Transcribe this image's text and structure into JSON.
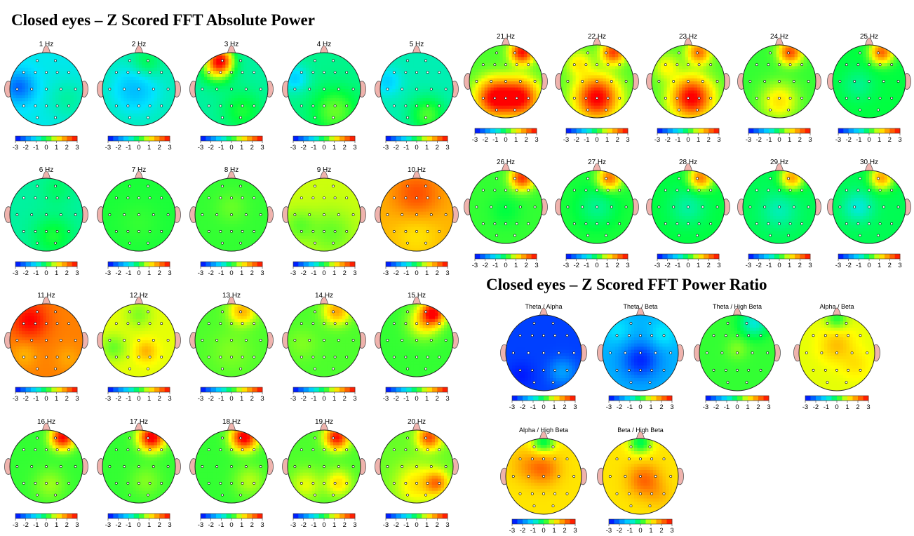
{
  "titles": {
    "absolute": "Closed eyes – Z Scored FFT Absolute Power",
    "ratio": "Closed eyes – Z Scored FFT Power Ratio"
  },
  "colorbar": {
    "ticks": [
      "-3",
      "-2",
      "-1",
      "0",
      "1",
      "2",
      "3"
    ],
    "colors": [
      "#0000ff",
      "#0080ff",
      "#00e5ff",
      "#00ff40",
      "#ffff00",
      "#ff8000",
      "#ff0000"
    ]
  },
  "absolute_maps": [
    {
      "label": "1 Hz",
      "base": -0.9,
      "blobs": [
        [
          -0.75,
          -0.05,
          -1.3,
          0.3
        ],
        [
          0.6,
          0.3,
          0.4,
          0.4
        ]
      ]
    },
    {
      "label": "2 Hz",
      "base": -0.6,
      "blobs": [
        [
          -0.1,
          0.0,
          -0.8,
          0.45
        ],
        [
          0.2,
          -0.7,
          0.6,
          0.3
        ]
      ]
    },
    {
      "label": "3 Hz",
      "base": -0.5,
      "blobs": [
        [
          -0.3,
          -0.8,
          2.5,
          0.22
        ],
        [
          -0.4,
          -0.6,
          1.5,
          0.3
        ],
        [
          0.3,
          0.6,
          0.6,
          0.4
        ]
      ]
    },
    {
      "label": "4 Hz",
      "base": -0.4,
      "blobs": [
        [
          0.3,
          0.6,
          0.8,
          0.45
        ],
        [
          -0.8,
          -0.3,
          -0.8,
          0.25
        ]
      ]
    },
    {
      "label": "5 Hz",
      "base": -0.6,
      "blobs": [
        [
          0.3,
          0.7,
          0.9,
          0.35
        ],
        [
          -0.8,
          -0.2,
          -0.6,
          0.25
        ]
      ]
    },
    {
      "label": "6 Hz",
      "base": -0.5,
      "blobs": [
        [
          0.2,
          0.6,
          0.6,
          0.4
        ],
        [
          0.3,
          -0.7,
          0.3,
          0.3
        ]
      ]
    },
    {
      "label": "7 Hz",
      "base": 0.1,
      "blobs": [
        [
          0.0,
          0.2,
          0.1,
          0.4
        ]
      ]
    },
    {
      "label": "8 Hz",
      "base": 0.2,
      "blobs": [
        [
          0.0,
          -0.2,
          0.2,
          0.3
        ]
      ]
    },
    {
      "label": "9 Hz",
      "base": 0.8,
      "blobs": [
        [
          0.2,
          0.5,
          -0.4,
          0.45
        ],
        [
          -0.7,
          0.3,
          -0.4,
          0.3
        ]
      ]
    },
    {
      "label": "10 Hz",
      "base": 1.6,
      "blobs": [
        [
          0.0,
          -0.55,
          0.8,
          0.45
        ],
        [
          0.0,
          0.55,
          -0.4,
          0.45
        ]
      ]
    },
    {
      "label": "11 Hz",
      "base": 2.0,
      "blobs": [
        [
          -0.45,
          -0.55,
          1.0,
          0.35
        ],
        [
          -0.6,
          0.4,
          -0.4,
          0.25
        ],
        [
          0.6,
          0.5,
          -0.3,
          0.25
        ]
      ]
    },
    {
      "label": "12 Hz",
      "base": 0.9,
      "blobs": [
        [
          0.2,
          0.3,
          0.7,
          0.2
        ],
        [
          -0.7,
          0.2,
          -0.5,
          0.25
        ],
        [
          0.0,
          -0.7,
          -0.4,
          0.25
        ]
      ]
    },
    {
      "label": "13 Hz",
      "base": 0.3,
      "blobs": [
        [
          0.3,
          -0.8,
          1.3,
          0.25
        ],
        [
          0.0,
          0.3,
          0.2,
          0.4
        ]
      ]
    },
    {
      "label": "14 Hz",
      "base": 0.3,
      "blobs": [
        [
          0.35,
          -0.8,
          1.4,
          0.25
        ],
        [
          -0.6,
          0.1,
          0.2,
          0.3
        ]
      ]
    },
    {
      "label": "15 Hz",
      "base": 0.2,
      "blobs": [
        [
          0.45,
          -0.75,
          2.6,
          0.22
        ],
        [
          0.2,
          -0.5,
          1.0,
          0.3
        ]
      ]
    },
    {
      "label": "16 Hz",
      "base": 0.2,
      "blobs": [
        [
          0.45,
          -0.8,
          2.8,
          0.22
        ],
        [
          0.1,
          0.5,
          0.4,
          0.3
        ]
      ]
    },
    {
      "label": "17 Hz",
      "base": 0.2,
      "blobs": [
        [
          0.35,
          -0.8,
          3.0,
          0.24
        ],
        [
          0.2,
          0.4,
          0.3,
          0.3
        ]
      ]
    },
    {
      "label": "18 Hz",
      "base": 0.2,
      "blobs": [
        [
          0.35,
          -0.8,
          3.0,
          0.24
        ],
        [
          0.5,
          0.4,
          0.5,
          0.3
        ]
      ]
    },
    {
      "label": "19 Hz",
      "base": 0.3,
      "blobs": [
        [
          0.35,
          -0.8,
          2.6,
          0.22
        ],
        [
          0.4,
          0.45,
          0.9,
          0.25
        ],
        [
          -0.5,
          0.5,
          0.6,
          0.3
        ]
      ]
    },
    {
      "label": "20 Hz",
      "base": 0.4,
      "blobs": [
        [
          0.35,
          -0.8,
          2.0,
          0.22
        ],
        [
          0.55,
          0.45,
          1.5,
          0.22
        ],
        [
          0.0,
          0.5,
          0.8,
          0.4
        ]
      ]
    },
    {
      "label": "21 Hz",
      "base": 0.3,
      "blobs": [
        [
          -0.3,
          0.45,
          2.7,
          0.35
        ],
        [
          0.4,
          0.45,
          2.6,
          0.35
        ],
        [
          0.45,
          -0.8,
          2.6,
          0.22
        ]
      ]
    },
    {
      "label": "22 Hz",
      "base": 0.3,
      "blobs": [
        [
          0.0,
          0.45,
          2.8,
          0.4
        ],
        [
          0.45,
          -0.8,
          2.2,
          0.22
        ],
        [
          -0.5,
          -0.5,
          0.8,
          0.25
        ]
      ]
    },
    {
      "label": "23 Hz",
      "base": 0.3,
      "blobs": [
        [
          0.1,
          0.45,
          2.8,
          0.38
        ],
        [
          0.3,
          -0.8,
          1.8,
          0.22
        ],
        [
          -0.6,
          -0.4,
          0.7,
          0.25
        ]
      ]
    },
    {
      "label": "24 Hz",
      "base": 0.2,
      "blobs": [
        [
          0.3,
          -0.8,
          2.2,
          0.22
        ],
        [
          0.0,
          0.55,
          1.0,
          0.35
        ]
      ]
    },
    {
      "label": "25 Hz",
      "base": 0.0,
      "blobs": [
        [
          0.35,
          -0.8,
          2.2,
          0.22
        ],
        [
          -0.3,
          0.1,
          -0.4,
          0.3
        ]
      ]
    },
    {
      "label": "26 Hz",
      "base": 0.2,
      "blobs": [
        [
          0.45,
          -0.8,
          2.4,
          0.22
        ],
        [
          0.0,
          0.1,
          -0.2,
          0.3
        ]
      ]
    },
    {
      "label": "27 Hz",
      "base": 0.1,
      "blobs": [
        [
          0.35,
          -0.8,
          2.0,
          0.22
        ],
        [
          0.0,
          0.0,
          -0.5,
          0.35
        ]
      ]
    },
    {
      "label": "28 Hz",
      "base": 0.0,
      "blobs": [
        [
          0.35,
          -0.8,
          2.0,
          0.22
        ],
        [
          0.0,
          0.0,
          -0.5,
          0.35
        ]
      ]
    },
    {
      "label": "29 Hz",
      "base": -0.1,
      "blobs": [
        [
          0.35,
          -0.8,
          1.8,
          0.22
        ],
        [
          0.0,
          0.1,
          -0.5,
          0.35
        ]
      ]
    },
    {
      "label": "30 Hz",
      "base": -0.1,
      "blobs": [
        [
          0.35,
          -0.8,
          1.8,
          0.22
        ],
        [
          -0.3,
          0.0,
          -0.7,
          0.3
        ]
      ]
    }
  ],
  "ratio_maps": [
    {
      "label": "Theta / Alpha",
      "base": -2.5,
      "blobs": [
        [
          0.5,
          0.5,
          0.8,
          0.25
        ],
        [
          -0.6,
          0.6,
          -0.3,
          0.25
        ]
      ]
    },
    {
      "label": "Theta / Beta",
      "base": -1.5,
      "blobs": [
        [
          0.0,
          0.2,
          -1.2,
          0.35
        ],
        [
          0.6,
          -0.5,
          0.6,
          0.25
        ],
        [
          -0.6,
          -0.6,
          0.5,
          0.25
        ]
      ]
    },
    {
      "label": "Theta / High Beta",
      "base": 0.2,
      "blobs": [
        [
          0.45,
          -0.8,
          -1.0,
          0.25
        ],
        [
          0.0,
          -0.1,
          0.3,
          0.2
        ]
      ]
    },
    {
      "label": "Alpha / Beta",
      "base": 0.9,
      "blobs": [
        [
          0.0,
          -0.2,
          0.6,
          0.3
        ],
        [
          0.5,
          0.3,
          0.3,
          0.25
        ],
        [
          0.0,
          -0.9,
          -0.8,
          0.2
        ]
      ]
    },
    {
      "label": "Alpha / High Beta",
      "base": 1.2,
      "blobs": [
        [
          0.0,
          -0.2,
          0.9,
          0.3
        ],
        [
          -0.5,
          -0.3,
          0.4,
          0.3
        ],
        [
          0.0,
          -0.9,
          -1.3,
          0.22
        ]
      ]
    },
    {
      "label": "Beta / High Beta",
      "base": 1.2,
      "blobs": [
        [
          0.1,
          0.1,
          1.0,
          0.3
        ],
        [
          0.0,
          -0.9,
          -1.3,
          0.22
        ],
        [
          0.5,
          0.5,
          0.3,
          0.25
        ]
      ]
    }
  ]
}
